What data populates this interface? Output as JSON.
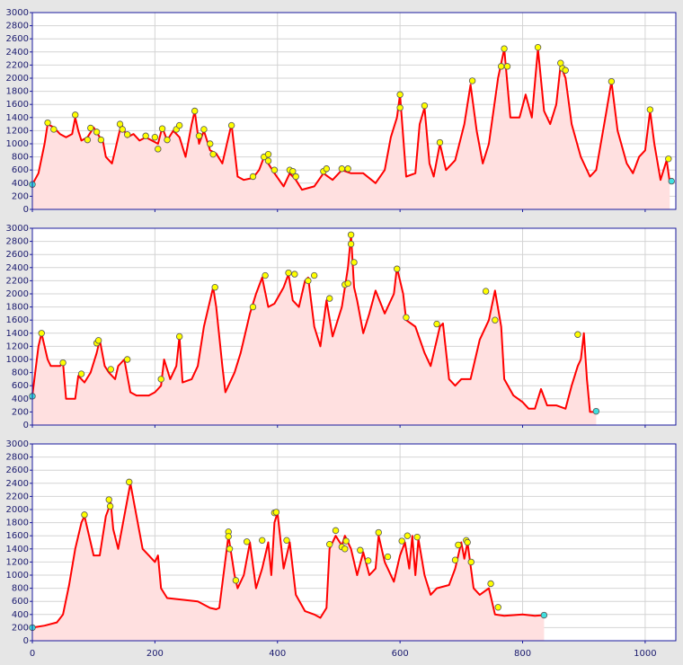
{
  "chart_data": [
    {
      "type": "area",
      "color": "#ff0000",
      "fill": "#ffe0e0",
      "point_color": "#ffff00",
      "endpoint_color": "#40e0e0",
      "grid": true,
      "xlim": [
        0,
        1050
      ],
      "xticks": [
        0,
        200,
        400,
        600,
        800,
        1000
      ],
      "ylim": [
        0,
        3000
      ],
      "yticks": [
        0,
        200,
        400,
        600,
        800,
        1000,
        1200,
        1400,
        1600,
        1800,
        2000,
        2200,
        2400,
        2600,
        2800,
        3000
      ],
      "x": [
        0,
        10,
        20,
        25,
        35,
        45,
        55,
        65,
        70,
        75,
        80,
        90,
        100,
        110,
        115,
        120,
        130,
        135,
        145,
        155,
        165,
        175,
        185,
        195,
        205,
        212,
        220,
        230,
        240,
        250,
        260,
        265,
        272,
        280,
        290,
        300,
        310,
        315,
        325,
        335,
        345,
        360,
        370,
        378,
        385,
        395,
        410,
        420,
        430,
        440,
        460,
        475,
        490,
        505,
        520,
        540,
        560,
        575,
        585,
        595,
        600,
        610,
        625,
        632,
        640,
        648,
        655,
        665,
        675,
        690,
        705,
        715,
        725,
        735,
        745,
        760,
        770,
        780,
        795,
        805,
        815,
        825,
        835,
        845,
        855,
        862,
        870,
        880,
        895,
        910,
        920,
        935,
        945,
        955,
        970,
        980,
        990,
        1000,
        1008,
        1015,
        1025,
        1035,
        1040
      ],
      "values": [
        380,
        550,
        1000,
        1300,
        1250,
        1150,
        1100,
        1150,
        1400,
        1200,
        1050,
        1100,
        1250,
        1100,
        1050,
        800,
        700,
        900,
        1300,
        1100,
        1150,
        1050,
        1100,
        1050,
        1000,
        1250,
        1050,
        1200,
        1100,
        800,
        1300,
        1500,
        1000,
        1200,
        900,
        850,
        700,
        900,
        1300,
        500,
        450,
        480,
        600,
        800,
        700,
        550,
        350,
        550,
        450,
        300,
        350,
        550,
        450,
        600,
        550,
        550,
        400,
        600,
        1100,
        1400,
        1750,
        500,
        550,
        1300,
        1550,
        700,
        500,
        1000,
        600,
        750,
        1300,
        1900,
        1200,
        700,
        1000,
        2000,
        2450,
        1400,
        1400,
        1750,
        1400,
        2450,
        1500,
        1300,
        1600,
        2200,
        2000,
        1300,
        800,
        500,
        600,
        1400,
        1950,
        1200,
        700,
        550,
        800,
        900,
        1500,
        1000,
        450,
        750,
        420
      ],
      "points": {
        "x": [
          25,
          35,
          70,
          90,
          95,
          105,
          112,
          143,
          147,
          155,
          185,
          200,
          205,
          212,
          220,
          235,
          240,
          265,
          272,
          280,
          290,
          295,
          325,
          360,
          378,
          385,
          385,
          395,
          420,
          425,
          430,
          475,
          480,
          505,
          515,
          600,
          600,
          640,
          665,
          718,
          765,
          770,
          775,
          825,
          862,
          865,
          870,
          945,
          1008,
          1038
        ],
        "values": [
          1320,
          1220,
          1440,
          1060,
          1240,
          1180,
          1060,
          1300,
          1220,
          1140,
          1120,
          1100,
          920,
          1230,
          1060,
          1220,
          1280,
          1500,
          1120,
          1220,
          1000,
          840,
          1280,
          500,
          800,
          840,
          740,
          600,
          600,
          580,
          500,
          580,
          620,
          620,
          620,
          1750,
          1550,
          1580,
          1020,
          1960,
          2180,
          2450,
          2180,
          2470,
          2230,
          2150,
          2120,
          1950,
          1520,
          770
        ]
      },
      "endpoints": {
        "x": [
          0,
          1043
        ],
        "values": [
          380,
          430
        ]
      }
    },
    {
      "type": "area",
      "color": "#ff0000",
      "fill": "#ffe0e0",
      "point_color": "#ffff00",
      "endpoint_color": "#40e0e0",
      "grid": true,
      "xlim": [
        0,
        1050
      ],
      "xticks": [
        0,
        200,
        400,
        600,
        800,
        1000
      ],
      "ylim": [
        0,
        3000
      ],
      "yticks": [
        0,
        200,
        400,
        600,
        800,
        1000,
        1200,
        1400,
        1600,
        1800,
        2000,
        2200,
        2400,
        2600,
        2800,
        3000
      ],
      "x": [
        0,
        10,
        15,
        25,
        30,
        45,
        50,
        55,
        70,
        75,
        80,
        85,
        95,
        105,
        110,
        118,
        125,
        135,
        140,
        150,
        160,
        170,
        190,
        200,
        210,
        215,
        225,
        235,
        240,
        245,
        260,
        270,
        280,
        295,
        300,
        310,
        315,
        330,
        340,
        355,
        365,
        375,
        385,
        395,
        410,
        418,
        425,
        435,
        445,
        450,
        460,
        470,
        480,
        490,
        505,
        515,
        520,
        525,
        530,
        540,
        550,
        560,
        575,
        590,
        595,
        605,
        610,
        625,
        640,
        650,
        665,
        670,
        680,
        690,
        700,
        715,
        730,
        745,
        755,
        765,
        770,
        785,
        800,
        810,
        820,
        830,
        840,
        855,
        870,
        880,
        890,
        895,
        900,
        905,
        910,
        920
      ],
      "values": [
        450,
        1200,
        1400,
        1000,
        900,
        900,
        950,
        400,
        400,
        750,
        700,
        650,
        800,
        1100,
        1300,
        900,
        800,
        700,
        900,
        1000,
        500,
        450,
        450,
        500,
        600,
        1000,
        700,
        900,
        1350,
        650,
        700,
        900,
        1500,
        2100,
        1800,
        900,
        500,
        800,
        1100,
        1700,
        2000,
        2250,
        1800,
        1850,
        2100,
        2300,
        1900,
        1800,
        2200,
        2250,
        1500,
        1200,
        1900,
        1350,
        1800,
        2400,
        2900,
        2100,
        1900,
        1400,
        1700,
        2050,
        1700,
        2000,
        2400,
        2000,
        1600,
        1500,
        1100,
        900,
        1500,
        1550,
        700,
        600,
        700,
        700,
        1300,
        1600,
        2050,
        1500,
        700,
        450,
        350,
        250,
        250,
        550,
        300,
        300,
        250,
        600,
        900,
        1000,
        1400,
        700,
        200,
        200
      ],
      "points": {
        "x": [
          15,
          50,
          80,
          105,
          108,
          128,
          155,
          210,
          240,
          298,
          360,
          380,
          418,
          428,
          450,
          460,
          485,
          510,
          515,
          520,
          520,
          525,
          595,
          610,
          660,
          740,
          755,
          890
        ],
        "values": [
          1400,
          950,
          780,
          1250,
          1290,
          850,
          1000,
          700,
          1350,
          2100,
          1800,
          2280,
          2320,
          2300,
          2200,
          2280,
          1930,
          2140,
          2160,
          2900,
          2760,
          2480,
          2380,
          1640,
          1540,
          2040,
          1600,
          1380
        ]
      },
      "endpoints": {
        "x": [
          0,
          920
        ],
        "values": [
          440,
          210
        ]
      }
    },
    {
      "type": "area",
      "color": "#ff0000",
      "fill": "#ffe0e0",
      "point_color": "#ffff00",
      "endpoint_color": "#40e0e0",
      "grid": true,
      "xlim": [
        0,
        1050
      ],
      "xticks": [
        0,
        200,
        400,
        600,
        800,
        1000
      ],
      "ylim": [
        0,
        3000
      ],
      "yticks": [
        0,
        200,
        400,
        600,
        800,
        1000,
        1200,
        1400,
        1600,
        1800,
        2000,
        2200,
        2400,
        2600,
        2800,
        3000
      ],
      "x": [
        0,
        20,
        40,
        50,
        60,
        70,
        80,
        85,
        90,
        100,
        110,
        120,
        128,
        132,
        140,
        150,
        160,
        170,
        180,
        190,
        200,
        205,
        210,
        220,
        250,
        270,
        290,
        300,
        305,
        320,
        330,
        335,
        345,
        355,
        365,
        375,
        385,
        390,
        395,
        400,
        410,
        420,
        430,
        445,
        460,
        470,
        480,
        485,
        495,
        505,
        510,
        520,
        530,
        540,
        550,
        560,
        565,
        575,
        580,
        590,
        600,
        608,
        615,
        620,
        625,
        630,
        640,
        650,
        660,
        680,
        690,
        700,
        705,
        710,
        720,
        730,
        745,
        755,
        770,
        800,
        820,
        835
      ],
      "values": [
        200,
        230,
        280,
        400,
        850,
        1400,
        1800,
        1900,
        1700,
        1300,
        1300,
        1900,
        2100,
        1700,
        1400,
        1900,
        2400,
        1900,
        1400,
        1300,
        1200,
        1300,
        800,
        650,
        620,
        600,
        500,
        480,
        500,
        1600,
        1000,
        800,
        1000,
        1500,
        800,
        1100,
        1500,
        1000,
        1800,
        1950,
        1100,
        1500,
        700,
        450,
        400,
        350,
        500,
        1400,
        1600,
        1450,
        1600,
        1400,
        1000,
        1350,
        1000,
        1100,
        1600,
        1200,
        1100,
        900,
        1300,
        1500,
        1100,
        1600,
        1000,
        1550,
        1000,
        700,
        800,
        850,
        1100,
        1500,
        1250,
        1500,
        800,
        700,
        800,
        400,
        380,
        400,
        380,
        390
      ],
      "points": {
        "x": [
          85,
          125,
          127,
          158,
          320,
          320,
          322,
          332,
          350,
          375,
          395,
          398,
          415,
          485,
          495,
          505,
          510,
          512,
          535,
          548,
          565,
          580,
          603,
          612,
          628,
          690,
          695,
          708,
          710,
          716,
          748,
          760
        ],
        "values": [
          1920,
          2150,
          2050,
          2420,
          1660,
          1590,
          1400,
          920,
          1510,
          1530,
          1950,
          1960,
          1530,
          1470,
          1680,
          1430,
          1400,
          1520,
          1380,
          1220,
          1650,
          1280,
          1520,
          1600,
          1580,
          1230,
          1460,
          1530,
          1500,
          1200,
          870,
          510
        ]
      },
      "endpoints": {
        "x": [
          0,
          835
        ],
        "values": [
          200,
          390
        ]
      }
    }
  ]
}
